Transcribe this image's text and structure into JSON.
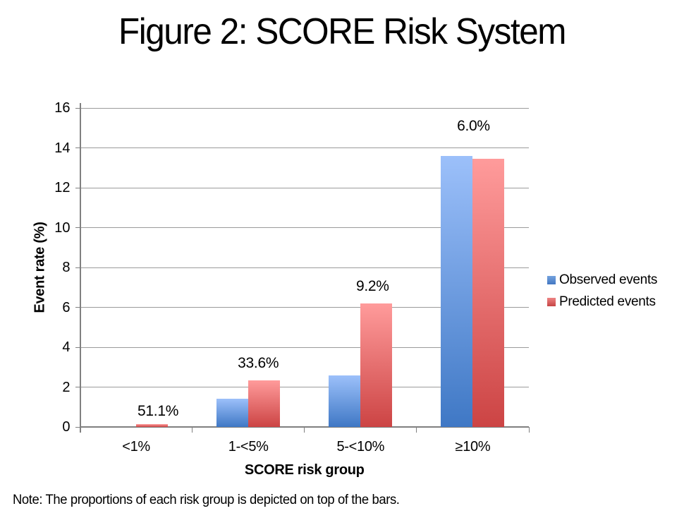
{
  "title": "Figure 2: SCORE Risk System",
  "note": "Note: The proportions of each risk group is depicted on top of the bars.",
  "legend": {
    "observed_label": "Observed events",
    "predicted_label": "Predicted events"
  },
  "colors": {
    "observed_top": "#9cc0fa",
    "observed_bottom": "#3f78c5",
    "predicted_top": "#ff9b9b",
    "predicted_bottom": "#cc4444",
    "gridline": "#9b9b9b",
    "axis": "#808080"
  },
  "chart_data": {
    "type": "bar",
    "title": "Figure 2: SCORE Risk System",
    "categories": [
      "<1%",
      "1-<5%",
      "5-<10%",
      "≥10%"
    ],
    "series": [
      {
        "name": "Observed events",
        "color": "#4f81bd",
        "values": [
          0,
          1.4,
          2.6,
          13.6
        ]
      },
      {
        "name": "Predicted events",
        "color": "#c0504d",
        "values": [
          0.15,
          2.35,
          6.2,
          13.45
        ]
      }
    ],
    "bar_labels": [
      "51.1%",
      "33.6%",
      "9.2%",
      "6.0%"
    ],
    "bar_labels_meaning": "proportion of each risk group, shown on top of the bars",
    "xlabel": "SCORE risk group",
    "ylabel": "Event rate (%)",
    "ylim": [
      0,
      16
    ],
    "yticks": [
      0,
      2,
      4,
      6,
      8,
      10,
      12,
      14,
      16
    ],
    "grid": "horizontal",
    "legend_position": "right"
  }
}
